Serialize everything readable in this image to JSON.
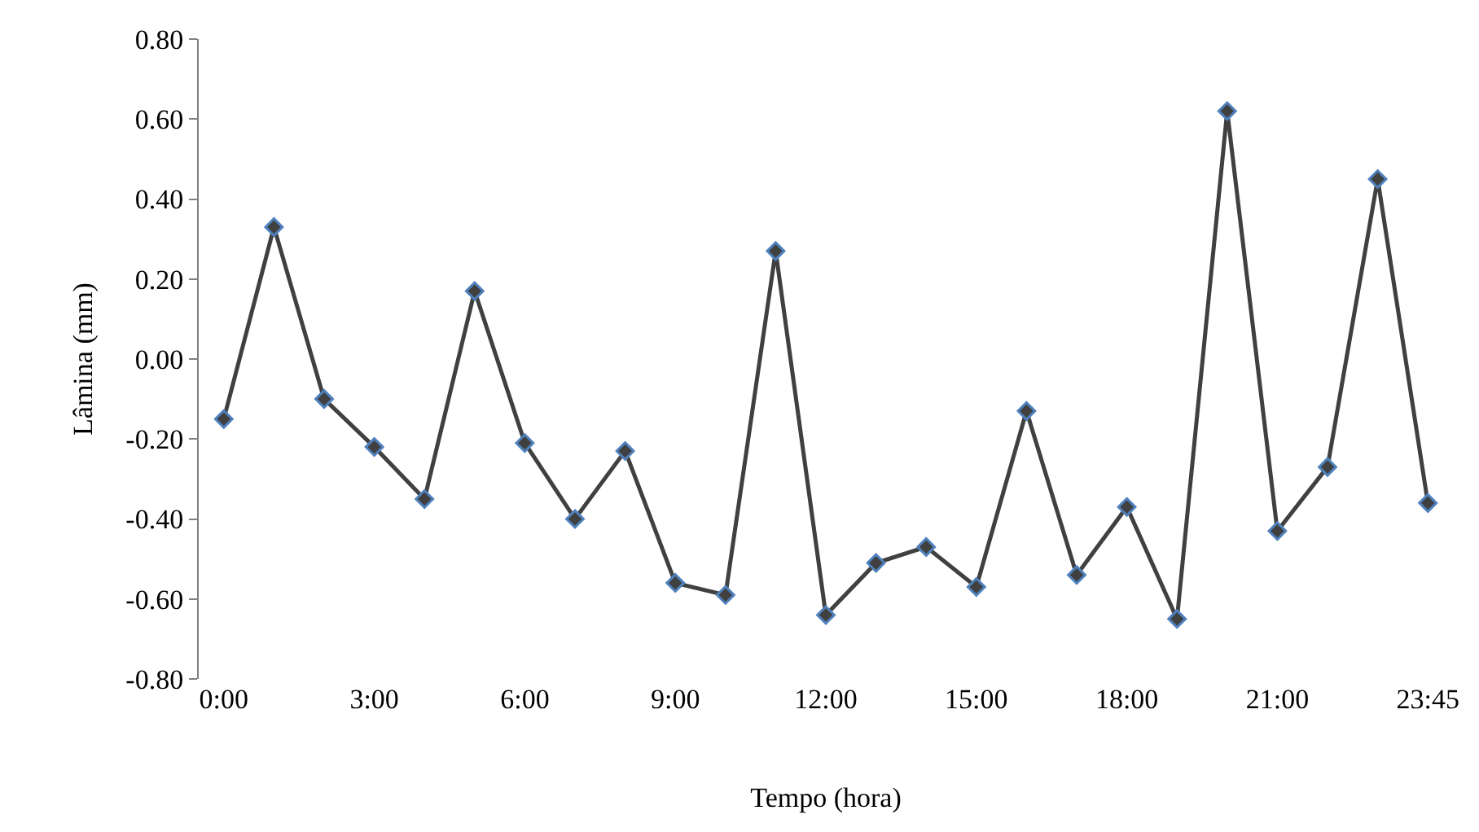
{
  "chart_data": {
    "type": "line",
    "xlabel": "Tempo (hora)",
    "ylabel": "Lâmina (mm)",
    "categories": [
      "0:00",
      null,
      null,
      "3:00",
      null,
      null,
      "6:00",
      null,
      null,
      "9:00",
      null,
      null,
      "12:00",
      null,
      null,
      "15:00",
      null,
      null,
      "18:00",
      null,
      null,
      "21:00",
      null,
      null,
      "23:45"
    ],
    "series": [
      {
        "color": "#404040",
        "values": [
          -0.15,
          0.33,
          -0.1,
          -0.22,
          -0.35,
          0.17,
          -0.21,
          -0.4,
          -0.23,
          -0.56,
          -0.59,
          0.27,
          -0.64,
          -0.51,
          -0.47,
          -0.57,
          -0.13,
          -0.54,
          -0.37,
          -0.65,
          0.62,
          -0.43,
          -0.27,
          0.45,
          -0.36
        ]
      }
    ],
    "ylim": [
      -0.8,
      0.8
    ],
    "yticks": [
      {
        "value": -0.8,
        "label": "-0.80"
      },
      {
        "value": -0.6,
        "label": "-0.60"
      },
      {
        "value": -0.4,
        "label": "-0.40"
      },
      {
        "value": -0.2,
        "label": "-0.20"
      },
      {
        "value": 0,
        "label": "0.00"
      },
      {
        "value": 0.2,
        "label": "0.20"
      },
      {
        "value": 0.4,
        "label": "0.40"
      },
      {
        "value": 0.6,
        "label": "0.60"
      },
      {
        "value": 0.8,
        "label": "0.80"
      }
    ],
    "grid": false,
    "legend": false,
    "marker": "diamond",
    "line_style": "solid"
  }
}
